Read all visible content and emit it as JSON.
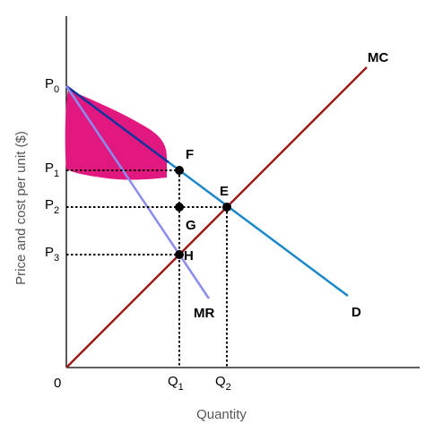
{
  "diagram": {
    "y_axis_title": "Price and cost per unit ($)",
    "x_axis_title": "Quantity",
    "origin_label": "0",
    "price_labels": [
      {
        "base": "P",
        "sub": "0"
      },
      {
        "base": "P",
        "sub": "1"
      },
      {
        "base": "P",
        "sub": "2"
      },
      {
        "base": "P",
        "sub": "3"
      }
    ],
    "quantity_labels": [
      {
        "base": "Q",
        "sub": "1"
      },
      {
        "base": "Q",
        "sub": "2"
      }
    ],
    "curves": {
      "demand": {
        "label": "D",
        "color": "#1b88c9"
      },
      "marginal_revenue": {
        "label": "MR",
        "color": "#8a8cef"
      },
      "marginal_cost": {
        "label": "MC",
        "color": "#9b1a1a"
      }
    },
    "points": {
      "f": "F",
      "e": "E",
      "g": "G",
      "h": "H"
    },
    "shaded_area_color": "#e0187f",
    "axis_color": "#000000"
  }
}
